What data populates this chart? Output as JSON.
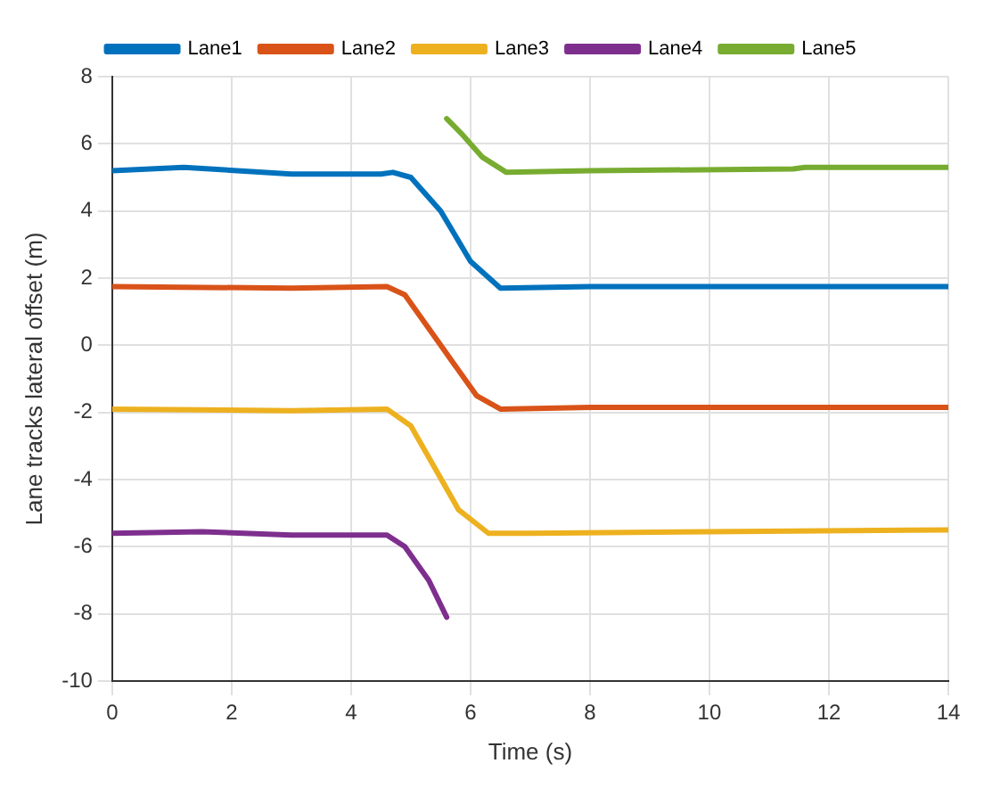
{
  "chart_data": {
    "type": "line",
    "xlabel": "Time (s)",
    "ylabel": "Lane tracks lateral offset (m)",
    "xlim": [
      0,
      14
    ],
    "xticks": [
      0,
      2,
      4,
      6,
      8,
      10,
      12,
      14
    ],
    "ylim": [
      -10,
      8
    ],
    "yticks": [
      -10,
      -8,
      -6,
      -4,
      -2,
      0,
      2,
      4,
      6,
      8
    ],
    "grid": true,
    "legend": "top",
    "marker": "none",
    "line_style": "solid",
    "series": [
      {
        "name": "Lane1",
        "color": "#0072bd",
        "x": [
          0,
          1.2,
          3,
          4.5,
          4.7,
          5,
          5.5,
          6,
          6.5,
          8,
          14
        ],
        "values": [
          5.2,
          5.3,
          5.1,
          5.1,
          5.15,
          5,
          4,
          2.5,
          1.7,
          1.75,
          1.75
        ]
      },
      {
        "name": "Lane2",
        "color": "#d95319",
        "x": [
          0,
          3,
          4.6,
          4.9,
          5.5,
          6.1,
          6.5,
          8,
          14
        ],
        "values": [
          1.75,
          1.7,
          1.75,
          1.5,
          0,
          -1.5,
          -1.9,
          -1.85,
          -1.85
        ]
      },
      {
        "name": "Lane3",
        "color": "#edb120",
        "x": [
          0,
          3,
          4.6,
          5,
          5.8,
          6.3,
          7,
          10,
          14
        ],
        "values": [
          -1.9,
          -1.95,
          -1.9,
          -2.4,
          -4.9,
          -5.6,
          -5.6,
          -5.55,
          -5.5
        ]
      },
      {
        "name": "Lane4",
        "color": "#7e2f8e",
        "x": [
          0,
          1.5,
          3,
          4.6,
          4.9,
          5.3,
          5.6
        ],
        "values": [
          -5.6,
          -5.55,
          -5.65,
          -5.65,
          -6,
          -7,
          -8.1
        ]
      },
      {
        "name": "Lane5",
        "color": "#77ac30",
        "x": [
          5.6,
          5.85,
          6.2,
          6.6,
          8,
          11.4,
          11.6,
          14
        ],
        "values": [
          6.75,
          6.3,
          5.6,
          5.15,
          5.2,
          5.25,
          5.3,
          5.3
        ]
      }
    ]
  }
}
